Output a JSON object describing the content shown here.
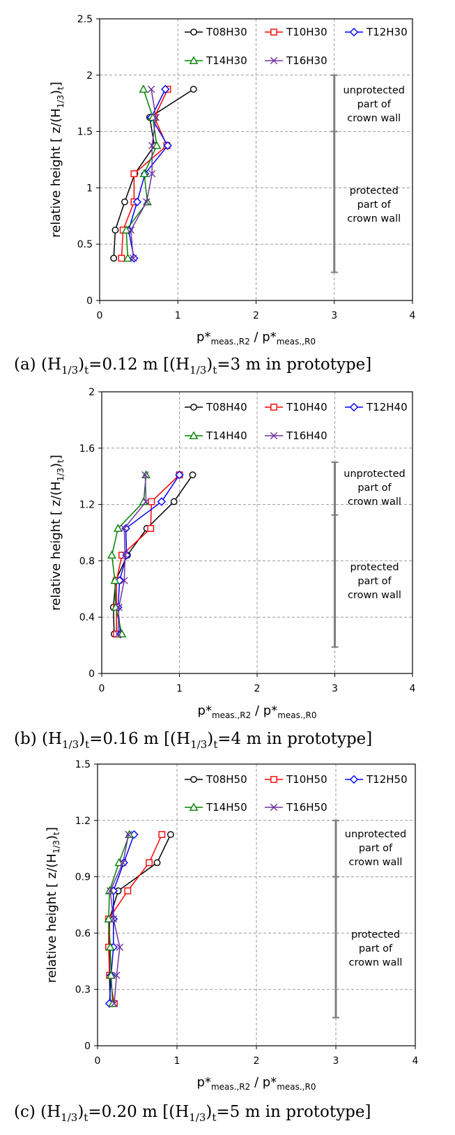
{
  "chart_data": [
    {
      "type": "line",
      "xlabel_main": "p*",
      "xlabel_num_sub": "meas.,R2",
      "xlabel_sep": " / p*",
      "xlabel_den_sub": "meas.,R0",
      "ylabel_main": "relative height [ z/(H",
      "ylabel_sub1": "1/3",
      "ylabel_mid": ")",
      "ylabel_sub2": "t",
      "ylabel_end": "]",
      "xlim": [
        0,
        4
      ],
      "ylim": [
        0,
        2.5
      ],
      "xticks": [
        "0",
        "1",
        "2",
        "3",
        "4"
      ],
      "yticks": [
        "0",
        "0.5",
        "1",
        "1.5",
        "2",
        "2.5"
      ],
      "xtick_values": [
        0,
        1,
        2,
        3,
        4
      ],
      "ytick_values": [
        0,
        0.5,
        1,
        1.5,
        2,
        2.5
      ],
      "grid": true,
      "legend_position": "top",
      "wall": {
        "x": 3,
        "y_bottom": 0.25,
        "y_split": 1.5,
        "y_top": 2.0
      },
      "annotations": {
        "unprotected": [
          "unprotected",
          "part of",
          "crown wall"
        ],
        "protected": [
          "protected",
          "part of",
          "crown wall"
        ]
      },
      "caption": {
        "prefix": "(a) (H",
        "sub1": "1/3",
        "p2": ")",
        "sub2": "t",
        "p3": "=0.12 m [(H",
        "sub3": "1/3",
        "p4": ")",
        "sub4": "t",
        "p5": "=3 m in prototype]"
      },
      "series": [
        {
          "name": "T08H30",
          "color": "#000000",
          "marker": "circle",
          "x": [
            0.18,
            0.2,
            0.32,
            0.45,
            0.7,
            0.64,
            1.2
          ],
          "y": [
            0.375,
            0.625,
            0.875,
            1.125,
            1.375,
            1.625,
            1.875
          ]
        },
        {
          "name": "T10H30",
          "color": "#ff0000",
          "marker": "square",
          "x": [
            0.28,
            0.3,
            0.44,
            0.44,
            0.86,
            0.7,
            0.87
          ],
          "y": [
            0.375,
            0.625,
            0.875,
            1.125,
            1.375,
            1.625,
            1.875
          ]
        },
        {
          "name": "T12H30",
          "color": "#0000ff",
          "marker": "diamond",
          "x": [
            0.44,
            0.37,
            0.48,
            0.58,
            0.87,
            0.66,
            0.84
          ],
          "y": [
            0.375,
            0.625,
            0.875,
            1.125,
            1.375,
            1.625,
            1.875
          ]
        },
        {
          "name": "T14H30",
          "color": "#008000",
          "marker": "triangle",
          "x": [
            0.36,
            0.34,
            0.61,
            0.57,
            0.73,
            0.68,
            0.56
          ],
          "y": [
            0.375,
            0.625,
            0.875,
            1.125,
            1.375,
            1.625,
            1.875
          ]
        },
        {
          "name": "T16H30",
          "color": "#7030a0",
          "marker": "x",
          "x": [
            0.43,
            0.4,
            0.6,
            0.67,
            0.67,
            0.72,
            0.66
          ],
          "y": [
            0.375,
            0.625,
            0.875,
            1.125,
            1.375,
            1.625,
            1.875
          ]
        }
      ]
    },
    {
      "type": "line",
      "xlabel_main": "p*",
      "xlabel_num_sub": "meas.,R2",
      "xlabel_sep": " / p*",
      "xlabel_den_sub": "meas.,R0",
      "ylabel_main": "relative height [ z/(H",
      "ylabel_sub1": "1/3",
      "ylabel_mid": ")",
      "ylabel_sub2": "t",
      "ylabel_end": "]",
      "xlim": [
        0,
        4
      ],
      "ylim": [
        0,
        2
      ],
      "xticks": [
        "0",
        "1",
        "2",
        "3",
        "4"
      ],
      "yticks": [
        "0",
        "0.4",
        "0.8",
        "1.2",
        "1.6",
        "2"
      ],
      "xtick_values": [
        0,
        1,
        2,
        3,
        4
      ],
      "ytick_values": [
        0,
        0.4,
        0.8,
        1.2,
        1.6,
        2
      ],
      "grid": true,
      "legend_position": "top",
      "wall": {
        "x": 3,
        "y_bottom": 0.1875,
        "y_split": 1.125,
        "y_top": 1.5
      },
      "annotations": {
        "unprotected": [
          "unprotected",
          "part of",
          "crown wall"
        ],
        "protected": [
          "protected",
          "part of",
          "crown wall"
        ]
      },
      "caption": {
        "prefix": "(b) (H",
        "sub1": "1/3",
        "p2": ")",
        "sub2": "t",
        "p3": "=0.16 m [(H",
        "sub3": "1/3",
        "p4": ")",
        "sub4": "t",
        "p5": "=4 m in prototype]"
      },
      "series": [
        {
          "name": "T08H40",
          "color": "#000000",
          "marker": "circle",
          "x": [
            0.16,
            0.15,
            0.18,
            0.33,
            0.58,
            0.93,
            1.17
          ],
          "y": [
            0.28,
            0.47,
            0.66,
            0.84,
            1.03,
            1.22,
            1.41
          ]
        },
        {
          "name": "T10H40",
          "color": "#ff0000",
          "marker": "square",
          "x": [
            0.19,
            0.19,
            0.19,
            0.26,
            0.63,
            0.64,
            1.0
          ],
          "y": [
            0.28,
            0.47,
            0.66,
            0.84,
            1.03,
            1.22,
            1.41
          ]
        },
        {
          "name": "T12H40",
          "color": "#0000ff",
          "marker": "diamond",
          "x": [
            0.24,
            0.21,
            0.23,
            0.32,
            0.31,
            0.77,
            1.0
          ],
          "y": [
            0.28,
            0.47,
            0.66,
            0.84,
            1.03,
            1.22,
            1.41
          ]
        },
        {
          "name": "T14H40",
          "color": "#008000",
          "marker": "triangle",
          "x": [
            0.26,
            0.18,
            0.17,
            0.13,
            0.21,
            0.54,
            0.57
          ],
          "y": [
            0.28,
            0.47,
            0.66,
            0.84,
            1.03,
            1.22,
            1.41
          ]
        },
        {
          "name": "T16H40",
          "color": "#7030a0",
          "marker": "x",
          "x": [
            0.21,
            0.22,
            0.29,
            0.3,
            0.29,
            0.57,
            0.56
          ],
          "y": [
            0.28,
            0.47,
            0.66,
            0.84,
            1.03,
            1.22,
            1.41
          ]
        }
      ]
    },
    {
      "type": "line",
      "xlabel_main": "p*",
      "xlabel_num_sub": "meas.,R2",
      "xlabel_sep": " / p*",
      "xlabel_den_sub": "meas.,R0",
      "ylabel_main": "relative height [ z/(H",
      "ylabel_sub1": "1/3",
      "ylabel_mid": ")",
      "ylabel_sub2": "t",
      "ylabel_end": "]",
      "xlim": [
        0,
        4
      ],
      "ylim": [
        0,
        1.5
      ],
      "xticks": [
        "0",
        "1",
        "2",
        "3",
        "4"
      ],
      "yticks": [
        "0",
        "0.3",
        "0.6",
        "0.9",
        "1.2",
        "1.5"
      ],
      "xtick_values": [
        0,
        1,
        2,
        3,
        4
      ],
      "ytick_values": [
        0,
        0.3,
        0.6,
        0.9,
        1.2,
        1.5
      ],
      "grid": true,
      "legend_position": "top",
      "wall": {
        "x": 3,
        "y_bottom": 0.15,
        "y_split": 0.9,
        "y_top": 1.2
      },
      "annotations": {
        "unprotected": [
          "unprotected",
          "part of",
          "crown wall"
        ],
        "protected": [
          "protected",
          "part of",
          "crown wall"
        ]
      },
      "caption": {
        "prefix": "(c) (H",
        "sub1": "1/3",
        "p2": ")",
        "sub2": "t",
        "p3": "=0.20 m [(H",
        "sub3": "1/3",
        "p4": ")",
        "sub4": "t",
        "p5": "=5 m in prototype]"
      },
      "series": [
        {
          "name": "T08H50",
          "color": "#000000",
          "marker": "circle",
          "x": [
            0.16,
            0.15,
            0.15,
            0.15,
            0.26,
            0.75,
            0.92
          ],
          "y": [
            0.225,
            0.375,
            0.525,
            0.675,
            0.825,
            0.975,
            1.125
          ]
        },
        {
          "name": "T10H50",
          "color": "#ff0000",
          "marker": "square",
          "x": [
            0.21,
            0.15,
            0.14,
            0.14,
            0.38,
            0.65,
            0.81
          ],
          "y": [
            0.225,
            0.375,
            0.525,
            0.675,
            0.825,
            0.975,
            1.125
          ]
        },
        {
          "name": "T12H50",
          "color": "#0000ff",
          "marker": "diamond",
          "x": [
            0.15,
            0.17,
            0.2,
            0.2,
            0.2,
            0.33,
            0.46
          ],
          "y": [
            0.225,
            0.375,
            0.525,
            0.675,
            0.825,
            0.975,
            1.125
          ]
        },
        {
          "name": "T14H50",
          "color": "#008000",
          "marker": "triangle",
          "x": [
            0.19,
            0.17,
            0.16,
            0.14,
            0.15,
            0.27,
            0.4
          ],
          "y": [
            0.225,
            0.375,
            0.525,
            0.675,
            0.825,
            0.975,
            1.125
          ]
        },
        {
          "name": "T16H50",
          "color": "#7030a0",
          "marker": "x",
          "x": [
            0.21,
            0.24,
            0.28,
            0.2,
            0.16,
            0.32,
            0.39
          ],
          "y": [
            0.225,
            0.375,
            0.525,
            0.675,
            0.825,
            0.975,
            1.125
          ]
        }
      ]
    }
  ]
}
